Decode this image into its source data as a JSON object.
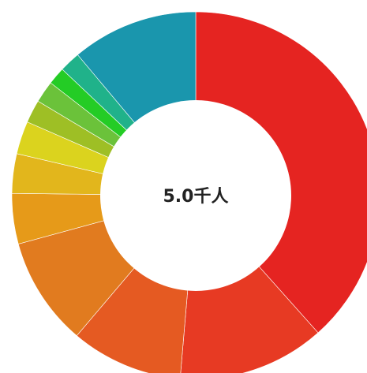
{
  "chart_data": {
    "type": "pie",
    "variant": "donut",
    "center_label": "5.0千人",
    "values": [
      39.8,
      13.4,
      10.2,
      9.9,
      4.6,
      3.6,
      3.0,
      2.1,
      2.0,
      1.6,
      1.9,
      11.5
    ],
    "colors": [
      "#e52421",
      "#e73a23",
      "#e55a22",
      "#e17b1f",
      "#e69a19",
      "#e2b61c",
      "#dbd31e",
      "#9ebf25",
      "#6bc23a",
      "#24cc25",
      "#20b28a",
      "#1a96ad"
    ],
    "direction": "clockwise",
    "start": "top"
  }
}
